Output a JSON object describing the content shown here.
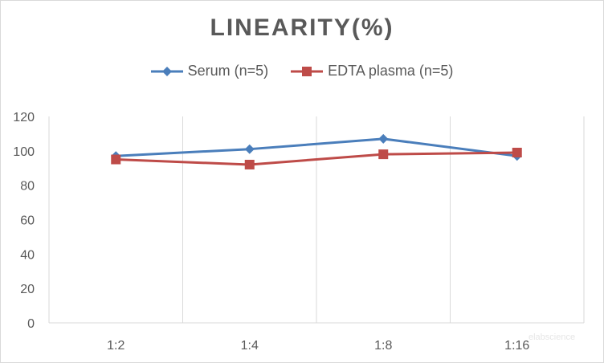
{
  "chart_data": {
    "type": "line",
    "title": "LINEARITY(%)",
    "xlabel": "",
    "ylabel": "",
    "categories": [
      "1:2",
      "1:4",
      "1:8",
      "1:16"
    ],
    "ylim": [
      0,
      120
    ],
    "yticks": [
      0,
      20,
      40,
      60,
      80,
      100,
      120
    ],
    "grid": "vertical category gridlines",
    "legend_position": "top",
    "series": [
      {
        "name": "Serum (n=5)",
        "values": [
          97,
          101,
          107,
          97
        ],
        "color": "#4a7ebb",
        "marker": "diamond"
      },
      {
        "name": "EDTA plasma (n=5)",
        "values": [
          95,
          92,
          98,
          99
        ],
        "color": "#be4b48",
        "marker": "square"
      }
    ]
  },
  "watermark": "elabscience"
}
